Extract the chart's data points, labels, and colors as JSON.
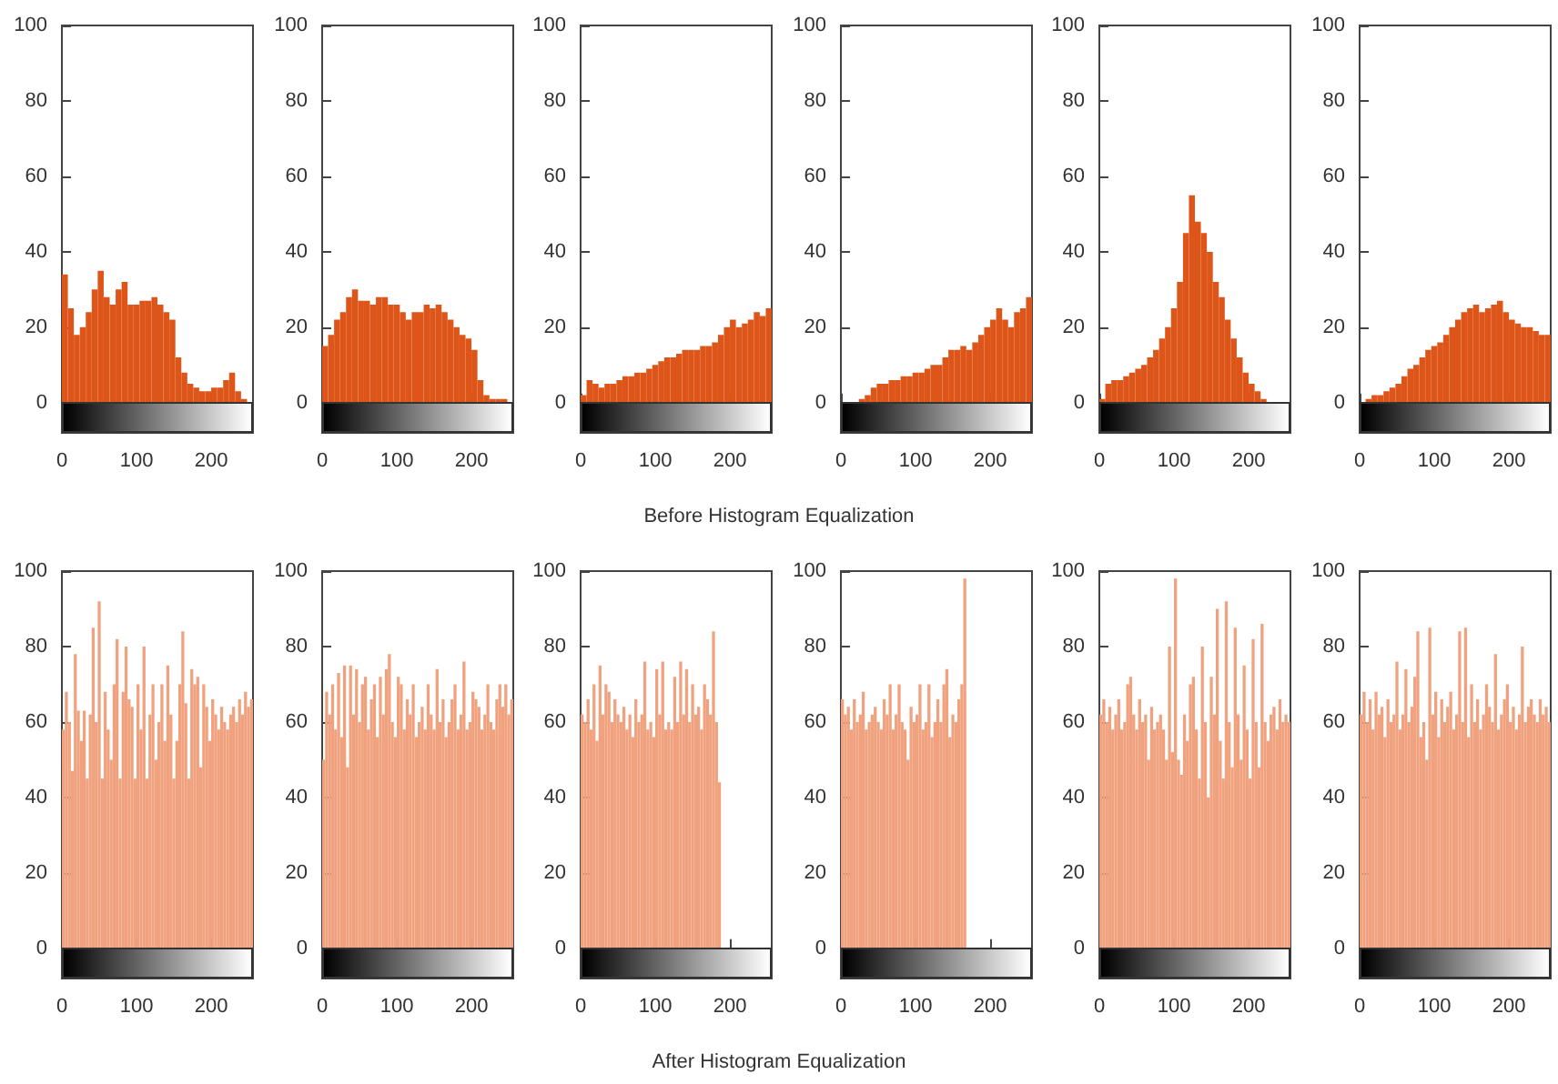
{
  "chart_data": [
    {
      "type": "histogram",
      "annotations": [
        "Before Histogram Equalization"
      ],
      "color": "#dd5519",
      "xlim": [
        0,
        256
      ],
      "xticks": [
        0,
        100,
        200
      ],
      "ylim": [
        -8,
        100
      ],
      "yticks": [
        0,
        20,
        40,
        60,
        80,
        100
      ],
      "grid": false,
      "bins": [
        0,
        8,
        16,
        24,
        32,
        40,
        48,
        56,
        64,
        72,
        80,
        88,
        96,
        104,
        112,
        120,
        128,
        136,
        144,
        152,
        160,
        168,
        176,
        184,
        192,
        200,
        208,
        216,
        224,
        232,
        240,
        248,
        256
      ],
      "values": [
        34,
        25,
        18,
        20,
        24,
        30,
        35,
        28,
        26,
        30,
        32,
        26,
        26,
        27,
        27,
        28,
        26,
        24,
        22,
        12,
        8,
        5,
        4,
        3,
        3,
        4,
        4,
        6,
        8,
        3,
        1,
        0
      ]
    },
    {
      "type": "histogram",
      "color": "#dd5519",
      "xlim": [
        0,
        256
      ],
      "xticks": [
        0,
        100,
        200
      ],
      "ylim": [
        -8,
        100
      ],
      "yticks": [
        0,
        20,
        40,
        60,
        80,
        100
      ],
      "grid": false,
      "bins": [
        0,
        8,
        16,
        24,
        32,
        40,
        48,
        56,
        64,
        72,
        80,
        88,
        96,
        104,
        112,
        120,
        128,
        136,
        144,
        152,
        160,
        168,
        176,
        184,
        192,
        200,
        208,
        216,
        224,
        232,
        240,
        248,
        256
      ],
      "values": [
        15,
        18,
        22,
        24,
        28,
        30,
        27,
        27,
        26,
        28,
        28,
        26,
        26,
        24,
        22,
        24,
        24,
        26,
        25,
        26,
        24,
        22,
        20,
        18,
        17,
        14,
        6,
        2,
        1,
        1,
        1,
        0
      ]
    },
    {
      "type": "histogram",
      "color": "#dd5519",
      "xlim": [
        0,
        256
      ],
      "xticks": [
        0,
        100,
        200
      ],
      "ylim": [
        -8,
        100
      ],
      "yticks": [
        0,
        20,
        40,
        60,
        80,
        100
      ],
      "grid": false,
      "bins": [
        0,
        8,
        16,
        24,
        32,
        40,
        48,
        56,
        64,
        72,
        80,
        88,
        96,
        104,
        112,
        120,
        128,
        136,
        144,
        152,
        160,
        168,
        176,
        184,
        192,
        200,
        208,
        216,
        224,
        232,
        240,
        248,
        256
      ],
      "values": [
        2,
        6,
        5,
        4,
        5,
        5,
        6,
        7,
        7,
        8,
        8,
        9,
        10,
        11,
        12,
        12,
        13,
        14,
        14,
        14,
        15,
        15,
        16,
        18,
        20,
        22,
        20,
        21,
        22,
        24,
        23,
        25
      ]
    },
    {
      "type": "histogram",
      "color": "#dd5519",
      "xlim": [
        0,
        256
      ],
      "xticks": [
        0,
        100,
        200
      ],
      "ylim": [
        -8,
        100
      ],
      "yticks": [
        0,
        20,
        40,
        60,
        80,
        100
      ],
      "grid": false,
      "bins": [
        0,
        8,
        16,
        24,
        32,
        40,
        48,
        56,
        64,
        72,
        80,
        88,
        96,
        104,
        112,
        120,
        128,
        136,
        144,
        152,
        160,
        168,
        176,
        184,
        192,
        200,
        208,
        216,
        224,
        232,
        240,
        248,
        256
      ],
      "values": [
        0,
        0,
        0,
        1,
        2,
        4,
        5,
        5,
        6,
        6,
        7,
        7,
        8,
        8,
        9,
        10,
        10,
        12,
        14,
        14,
        15,
        14,
        16,
        18,
        20,
        22,
        25,
        22,
        20,
        24,
        25,
        28
      ]
    },
    {
      "type": "histogram",
      "color": "#dd5519",
      "xlim": [
        0,
        256
      ],
      "xticks": [
        0,
        100,
        200
      ],
      "ylim": [
        -8,
        100
      ],
      "yticks": [
        0,
        20,
        40,
        60,
        80,
        100
      ],
      "grid": false,
      "bins": [
        0,
        8,
        16,
        24,
        32,
        40,
        48,
        56,
        64,
        72,
        80,
        88,
        96,
        104,
        112,
        120,
        128,
        136,
        144,
        152,
        160,
        168,
        176,
        184,
        192,
        200,
        208,
        216,
        224,
        232,
        240,
        248,
        256
      ],
      "values": [
        1,
        5,
        6,
        6,
        7,
        8,
        9,
        10,
        12,
        14,
        17,
        20,
        25,
        32,
        45,
        55,
        48,
        45,
        40,
        32,
        28,
        22,
        17,
        12,
        8,
        5,
        3,
        1,
        0,
        0,
        0,
        0
      ]
    },
    {
      "type": "histogram",
      "color": "#dd5519",
      "xlim": [
        0,
        256
      ],
      "xticks": [
        0,
        100,
        200
      ],
      "ylim": [
        -8,
        100
      ],
      "yticks": [
        0,
        20,
        40,
        60,
        80,
        100
      ],
      "grid": false,
      "bins": [
        0,
        8,
        16,
        24,
        32,
        40,
        48,
        56,
        64,
        72,
        80,
        88,
        96,
        104,
        112,
        120,
        128,
        136,
        144,
        152,
        160,
        168,
        176,
        184,
        192,
        200,
        208,
        216,
        224,
        232,
        240,
        248,
        256
      ],
      "values": [
        0,
        1,
        2,
        2,
        3,
        4,
        5,
        7,
        9,
        10,
        12,
        14,
        15,
        16,
        18,
        20,
        22,
        24,
        25,
        26,
        24,
        25,
        26,
        27,
        24,
        22,
        21,
        20,
        20,
        19,
        18,
        18
      ]
    },
    {
      "type": "histogram",
      "annotations": [
        "After Histogram Equalization"
      ],
      "color": "#f0a27f",
      "xlim": [
        0,
        256
      ],
      "xticks": [
        0,
        100,
        200
      ],
      "ylim": [
        -8,
        100
      ],
      "yticks": [
        0,
        20,
        40,
        60,
        80,
        100
      ],
      "grid": false,
      "bins": [
        0,
        4,
        8,
        12,
        16,
        20,
        24,
        28,
        32,
        36,
        40,
        44,
        48,
        52,
        56,
        60,
        64,
        68,
        72,
        76,
        80,
        84,
        88,
        92,
        96,
        100,
        104,
        108,
        112,
        116,
        120,
        124,
        128,
        132,
        136,
        140,
        144,
        148,
        152,
        156,
        160,
        164,
        168,
        172,
        176,
        180,
        184,
        188,
        192,
        196,
        200,
        204,
        208,
        212,
        216,
        220,
        224,
        228,
        232,
        236,
        240,
        244,
        248,
        252,
        256
      ],
      "values": [
        58,
        68,
        60,
        47,
        78,
        63,
        55,
        63,
        45,
        62,
        85,
        60,
        92,
        45,
        68,
        58,
        50,
        70,
        82,
        45,
        68,
        80,
        66,
        64,
        45,
        70,
        58,
        80,
        45,
        62,
        70,
        50,
        60,
        70,
        55,
        75,
        62,
        45,
        55,
        70,
        84,
        65,
        45,
        74,
        70,
        72,
        48,
        70,
        64,
        55,
        66,
        62,
        58,
        64,
        60,
        58,
        62,
        64,
        60,
        66,
        62,
        68,
        64,
        66
      ]
    },
    {
      "type": "histogram",
      "color": "#f0a27f",
      "xlim": [
        0,
        256
      ],
      "xticks": [
        0,
        100,
        200
      ],
      "ylim": [
        -8,
        100
      ],
      "yticks": [
        0,
        20,
        40,
        60,
        80,
        100
      ],
      "grid": false,
      "bins": [
        0,
        4,
        8,
        12,
        16,
        20,
        24,
        28,
        32,
        36,
        40,
        44,
        48,
        52,
        56,
        60,
        64,
        68,
        72,
        76,
        80,
        84,
        88,
        92,
        96,
        100,
        104,
        108,
        112,
        116,
        120,
        124,
        128,
        132,
        136,
        140,
        144,
        148,
        152,
        156,
        160,
        164,
        168,
        172,
        176,
        180,
        184,
        188,
        192,
        196,
        200,
        204,
        208,
        212,
        216,
        220,
        224,
        228,
        232,
        236,
        240,
        244,
        248,
        252,
        256
      ],
      "values": [
        50,
        68,
        62,
        70,
        58,
        73,
        56,
        75,
        48,
        75,
        62,
        74,
        60,
        70,
        72,
        58,
        66,
        70,
        56,
        72,
        62,
        74,
        78,
        60,
        56,
        72,
        70,
        58,
        66,
        62,
        70,
        56,
        60,
        64,
        58,
        70,
        62,
        58,
        74,
        60,
        66,
        56,
        60,
        66,
        70,
        58,
        62,
        76,
        58,
        60,
        68,
        66,
        64,
        58,
        62,
        70,
        60,
        58,
        66,
        70,
        64,
        70,
        62,
        66
      ]
    },
    {
      "type": "histogram",
      "color": "#f0a27f",
      "xlim": [
        0,
        256
      ],
      "xticks": [
        0,
        100,
        200
      ],
      "ylim": [
        -8,
        100
      ],
      "yticks": [
        0,
        20,
        40,
        60,
        80,
        100
      ],
      "grid": false,
      "bins": [
        0,
        4,
        8,
        12,
        16,
        20,
        24,
        28,
        32,
        36,
        40,
        44,
        48,
        52,
        56,
        60,
        64,
        68,
        72,
        76,
        80,
        84,
        88,
        92,
        96,
        100,
        104,
        108,
        112,
        116,
        120,
        124,
        128,
        132,
        136,
        140,
        144,
        148,
        152,
        156,
        160,
        164,
        168,
        172,
        176,
        180,
        184,
        188,
        192,
        196,
        200,
        204,
        208,
        212,
        216,
        220,
        224,
        228,
        232,
        236,
        240,
        244,
        248,
        252,
        256
      ],
      "values": [
        62,
        60,
        66,
        58,
        70,
        55,
        75,
        62,
        70,
        68,
        60,
        66,
        62,
        60,
        64,
        58,
        62,
        56,
        66,
        60,
        62,
        76,
        58,
        60,
        56,
        74,
        62,
        76,
        58,
        60,
        58,
        72,
        60,
        76,
        62,
        74,
        60,
        70,
        62,
        64,
        58,
        70,
        66,
        62,
        84,
        60,
        44,
        0,
        0,
        0,
        0,
        0,
        0,
        0,
        0,
        0,
        0,
        0,
        0,
        0,
        0,
        0,
        0,
        0
      ]
    },
    {
      "type": "histogram",
      "color": "#f0a27f",
      "xlim": [
        0,
        256
      ],
      "xticks": [
        0,
        100,
        200
      ],
      "ylim": [
        -8,
        100
      ],
      "yticks": [
        0,
        20,
        40,
        60,
        80,
        100
      ],
      "grid": false,
      "bins": [
        0,
        4,
        8,
        12,
        16,
        20,
        24,
        28,
        32,
        36,
        40,
        44,
        48,
        52,
        56,
        60,
        64,
        68,
        72,
        76,
        80,
        84,
        88,
        92,
        96,
        100,
        104,
        108,
        112,
        116,
        120,
        124,
        128,
        132,
        136,
        140,
        144,
        148,
        152,
        156,
        160,
        164,
        168,
        172,
        176,
        180,
        184,
        188,
        192,
        196,
        200,
        204,
        208,
        212,
        216,
        220,
        224,
        228,
        232,
        236,
        240,
        244,
        248,
        252,
        256
      ],
      "values": [
        66,
        62,
        64,
        58,
        66,
        60,
        62,
        68,
        58,
        60,
        62,
        64,
        60,
        58,
        66,
        62,
        70,
        58,
        62,
        70,
        60,
        58,
        50,
        64,
        60,
        62,
        70,
        58,
        60,
        70,
        56,
        60,
        66,
        60,
        70,
        74,
        56,
        62,
        60,
        66,
        70,
        98,
        0,
        0,
        0,
        0,
        0,
        0,
        0,
        0,
        0,
        0,
        0,
        0,
        0,
        0,
        0,
        0,
        0,
        0,
        0,
        0,
        0,
        0
      ]
    },
    {
      "type": "histogram",
      "color": "#f0a27f",
      "xlim": [
        0,
        256
      ],
      "xticks": [
        0,
        100,
        200
      ],
      "ylim": [
        -8,
        100
      ],
      "yticks": [
        0,
        20,
        40,
        60,
        80,
        100
      ],
      "grid": false,
      "bins": [
        0,
        4,
        8,
        12,
        16,
        20,
        24,
        28,
        32,
        36,
        40,
        44,
        48,
        52,
        56,
        60,
        64,
        68,
        72,
        76,
        80,
        84,
        88,
        92,
        96,
        100,
        104,
        108,
        112,
        116,
        120,
        124,
        128,
        132,
        136,
        140,
        144,
        148,
        152,
        156,
        160,
        164,
        168,
        172,
        176,
        180,
        184,
        188,
        192,
        196,
        200,
        204,
        208,
        212,
        216,
        220,
        224,
        228,
        232,
        236,
        240,
        244,
        248,
        252,
        256
      ],
      "values": [
        62,
        66,
        60,
        64,
        58,
        62,
        66,
        58,
        60,
        70,
        72,
        62,
        58,
        66,
        60,
        62,
        50,
        64,
        58,
        60,
        62,
        58,
        50,
        80,
        52,
        98,
        50,
        46,
        62,
        55,
        70,
        72,
        58,
        45,
        80,
        60,
        40,
        72,
        62,
        90,
        55,
        45,
        92,
        60,
        48,
        85,
        62,
        50,
        75,
        58,
        45,
        82,
        60,
        48,
        86,
        60,
        55,
        62,
        64,
        58,
        66,
        60,
        62,
        60
      ]
    },
    {
      "type": "histogram",
      "color": "#f0a27f",
      "xlim": [
        0,
        256
      ],
      "xticks": [
        0,
        100,
        200
      ],
      "ylim": [
        -8,
        100
      ],
      "yticks": [
        0,
        20,
        40,
        60,
        80,
        100
      ],
      "grid": false,
      "bins": [
        0,
        4,
        8,
        12,
        16,
        20,
        24,
        28,
        32,
        36,
        40,
        44,
        48,
        52,
        56,
        60,
        64,
        68,
        72,
        76,
        80,
        84,
        88,
        92,
        96,
        100,
        104,
        108,
        112,
        116,
        120,
        124,
        128,
        132,
        136,
        140,
        144,
        148,
        152,
        156,
        160,
        164,
        168,
        172,
        176,
        180,
        184,
        188,
        192,
        196,
        200,
        204,
        208,
        212,
        216,
        220,
        224,
        228,
        232,
        236,
        240,
        244,
        248,
        252,
        256
      ],
      "values": [
        62,
        68,
        60,
        66,
        58,
        68,
        62,
        64,
        56,
        66,
        60,
        62,
        76,
        58,
        62,
        74,
        60,
        64,
        72,
        84,
        56,
        60,
        50,
        85,
        62,
        68,
        56,
        66,
        60,
        64,
        68,
        58,
        62,
        84,
        60,
        85,
        56,
        70,
        60,
        66,
        58,
        62,
        70,
        64,
        60,
        78,
        58,
        62,
        66,
        70,
        60,
        64,
        58,
        62,
        80,
        60,
        64,
        66,
        62,
        60,
        66,
        62,
        64,
        60
      ]
    }
  ]
}
